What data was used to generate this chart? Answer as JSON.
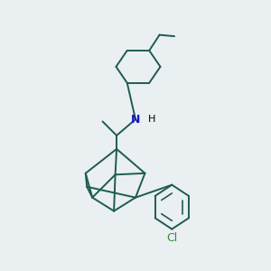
{
  "background_color": "#eaeff2",
  "line_color": "#1d5c50",
  "n_color": "#1515cc",
  "cl_color": "#3a8a3a",
  "line_width": 1.4,
  "figsize": [
    3.0,
    3.0
  ],
  "dpi": 100,
  "xlim": [
    0,
    10
  ],
  "ylim": [
    0,
    10
  ]
}
